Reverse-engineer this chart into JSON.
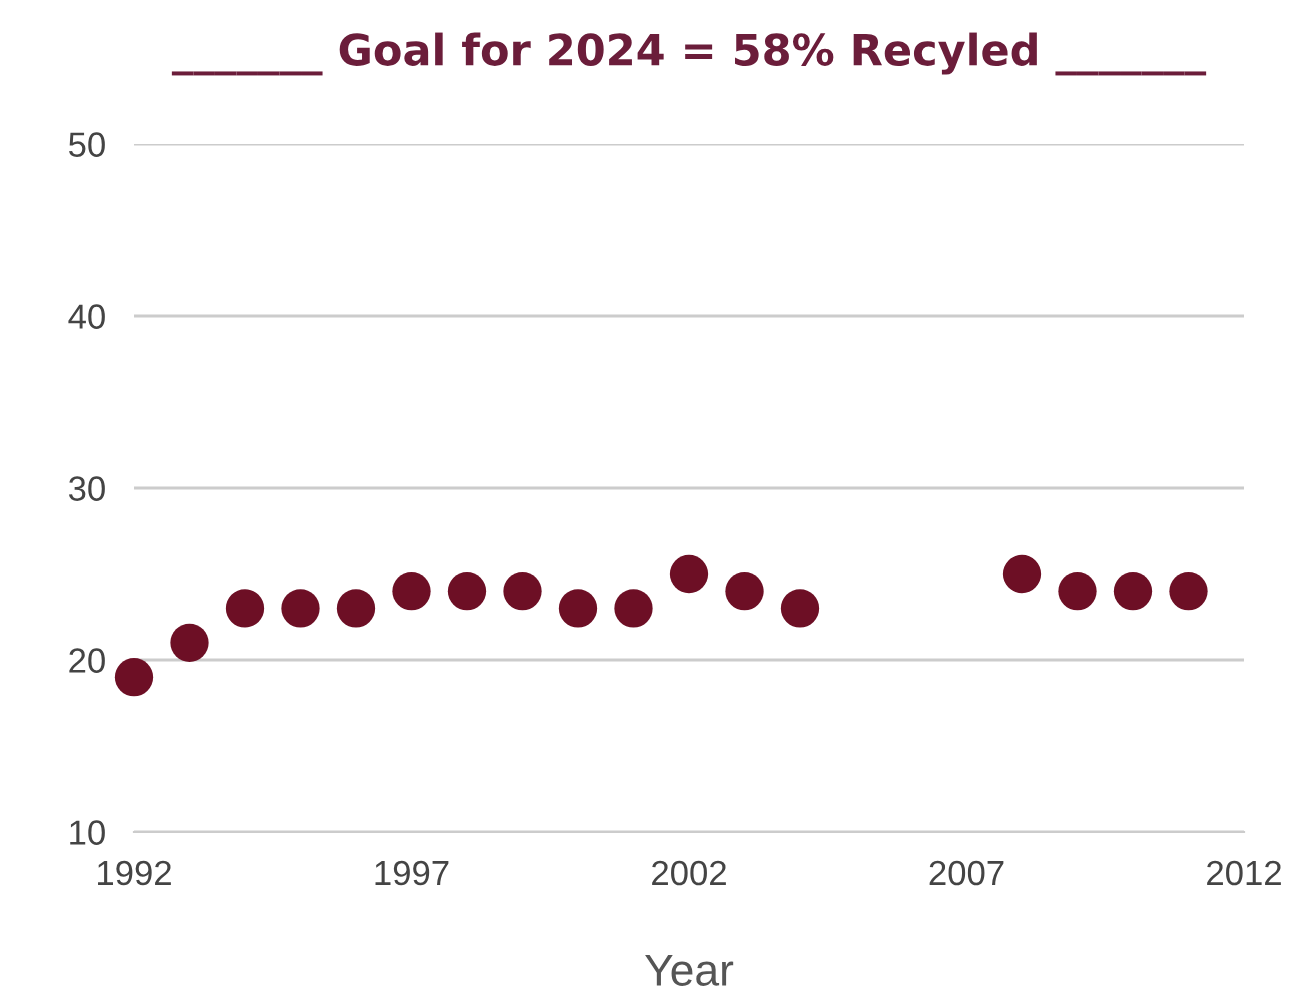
{
  "chart_data": {
    "type": "scatter",
    "title": "_______ Goal for 2024 = 58% Recyled _______",
    "xlabel": "Year",
    "x": [
      1992,
      1993,
      1994,
      1995,
      1996,
      1997,
      1998,
      1999,
      2000,
      2001,
      2002,
      2003,
      2004,
      2008,
      2009,
      2010,
      2011
    ],
    "series": [
      {
        "color": "#6d0f25",
        "values": [
          19,
          21,
          23,
          23,
          23,
          24,
          24,
          24,
          23,
          23,
          25,
          24,
          23,
          25,
          24,
          24,
          24
        ]
      }
    ],
    "xlim": [
      1992,
      2012
    ],
    "xticks": [
      1992,
      1997,
      2002,
      2007,
      2012
    ],
    "ylim": [
      10,
      50
    ],
    "yticks": [
      10,
      20,
      30,
      40,
      50
    ],
    "grid": "y",
    "marker": "circle"
  }
}
